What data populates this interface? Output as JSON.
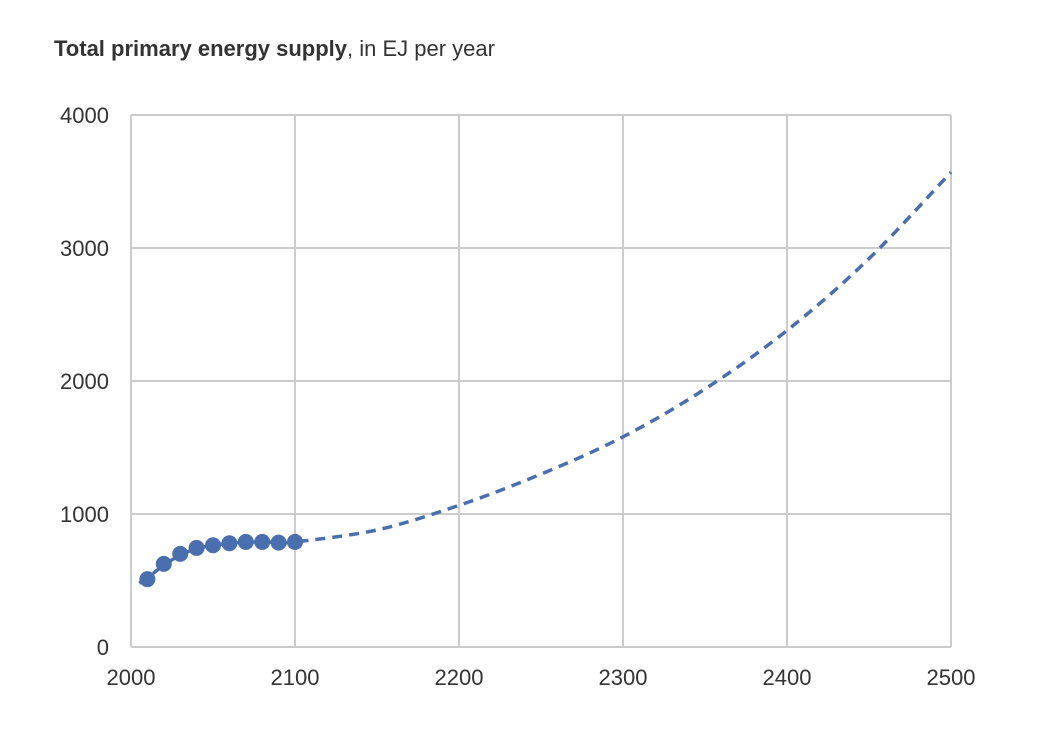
{
  "chart_data": {
    "type": "scatter",
    "title_bold": "Total primary energy supply",
    "title_rest": ", in EJ per year",
    "xlim": [
      2000,
      2500
    ],
    "ylim": [
      0,
      4000
    ],
    "x_ticks": [
      2000,
      2100,
      2200,
      2300,
      2400,
      2500
    ],
    "y_ticks": [
      0,
      1000,
      2000,
      3000,
      4000
    ],
    "grid": true,
    "colors": {
      "series": "#4a6fae",
      "grid": "#cccccc",
      "text": "#333333"
    },
    "series": [
      {
        "style": "markers",
        "x": [
          2010,
          2020,
          2030,
          2040,
          2050,
          2060,
          2070,
          2080,
          2090,
          2100
        ],
        "y": [
          510,
          625,
          700,
          745,
          765,
          780,
          790,
          790,
          785,
          790
        ]
      },
      {
        "style": "dashed-line",
        "x": [
          2005,
          2010,
          2020,
          2030,
          2040,
          2050,
          2060,
          2070,
          2080,
          2090,
          2100,
          2150,
          2200,
          2250,
          2300,
          2350,
          2400,
          2450,
          2500
        ],
        "y": [
          480,
          520,
          615,
          690,
          740,
          765,
          780,
          788,
          790,
          788,
          790,
          880,
          1065,
          1300,
          1580,
          1940,
          2380,
          2920,
          3570
        ]
      }
    ]
  }
}
